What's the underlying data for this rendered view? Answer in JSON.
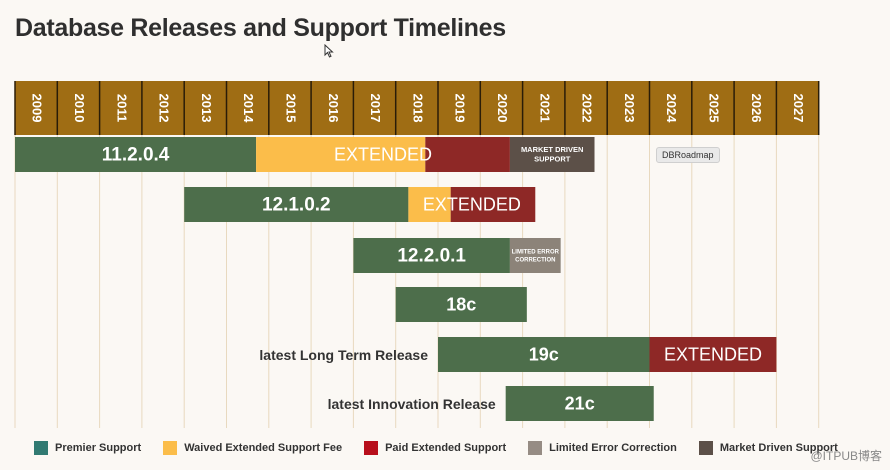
{
  "title": "Database Releases and Support Timelines",
  "tooltip": "DBRoadmap",
  "watermark": "@ITPUB博客",
  "colors": {
    "premier": "#4d6e4b",
    "waived": "#fbbd4a",
    "paid": "#8e2826",
    "limited": "#8c8379",
    "market": "#5c5048",
    "header": "#9f6d14"
  },
  "legend": [
    {
      "label": "Premier Support",
      "color": "#317a72"
    },
    {
      "label": "Waived Extended Support Fee",
      "color": "#fbbd4a"
    },
    {
      "label": "Paid Extended Support",
      "color": "#b80f1c"
    },
    {
      "label": "Limited Error Correction",
      "color": "#968c84"
    },
    {
      "label": "Market Driven Support",
      "color": "#5c5048"
    }
  ],
  "chart_data": {
    "type": "gantt",
    "years": [
      "2009",
      "2010",
      "2011",
      "2012",
      "2013",
      "2014",
      "2015",
      "2016",
      "2017",
      "2018",
      "2019",
      "2020",
      "2021",
      "2022",
      "2023",
      "2024",
      "2025",
      "2026",
      "2027"
    ],
    "releases": [
      {
        "name": "11.2.0.4",
        "side_label": "",
        "segments": [
          {
            "kind": "premier",
            "start": 2009.0,
            "end": 2014.7
          },
          {
            "kind": "waived",
            "start": 2014.7,
            "end": 2018.7
          },
          {
            "kind": "paid",
            "start": 2018.7,
            "end": 2020.7
          },
          {
            "kind": "market",
            "start": 2020.7,
            "end": 2022.7
          }
        ],
        "extended_label": "EXTENDED",
        "extended_span": [
          2014.7,
          2020.7
        ],
        "extra_label": "MARKET DRIVEN SUPPORT"
      },
      {
        "name": "12.1.0.2",
        "side_label": "",
        "segments": [
          {
            "kind": "premier",
            "start": 2013.0,
            "end": 2018.3
          },
          {
            "kind": "waived",
            "start": 2018.3,
            "end": 2019.3
          },
          {
            "kind": "paid",
            "start": 2019.3,
            "end": 2021.3
          }
        ],
        "extended_label": "EXTENDED",
        "extended_span": [
          2018.3,
          2021.3
        ],
        "extra_label": ""
      },
      {
        "name": "12.2.0.1",
        "side_label": "",
        "segments": [
          {
            "kind": "premier",
            "start": 2017.0,
            "end": 2020.7
          },
          {
            "kind": "limited",
            "start": 2020.7,
            "end": 2021.9
          }
        ],
        "extended_label": "",
        "extended_span": [],
        "extra_label": "LIMITED ERROR CORRECTION"
      },
      {
        "name": "18c",
        "side_label": "",
        "segments": [
          {
            "kind": "premier",
            "start": 2018.0,
            "end": 2021.1
          }
        ],
        "extended_label": "",
        "extended_span": [],
        "extra_label": ""
      },
      {
        "name": "19c",
        "side_label": "latest Long Term Release",
        "segments": [
          {
            "kind": "premier",
            "start": 2019.0,
            "end": 2024.0
          },
          {
            "kind": "paid",
            "start": 2024.0,
            "end": 2027.0
          }
        ],
        "extended_label": "EXTENDED",
        "extended_span": [
          2024.0,
          2027.0
        ],
        "extra_label": ""
      },
      {
        "name": "21c",
        "side_label": "latest Innovation Release",
        "segments": [
          {
            "kind": "premier",
            "start": 2020.6,
            "end": 2024.1
          }
        ],
        "extended_label": "",
        "extended_span": [],
        "extra_label": ""
      }
    ]
  }
}
